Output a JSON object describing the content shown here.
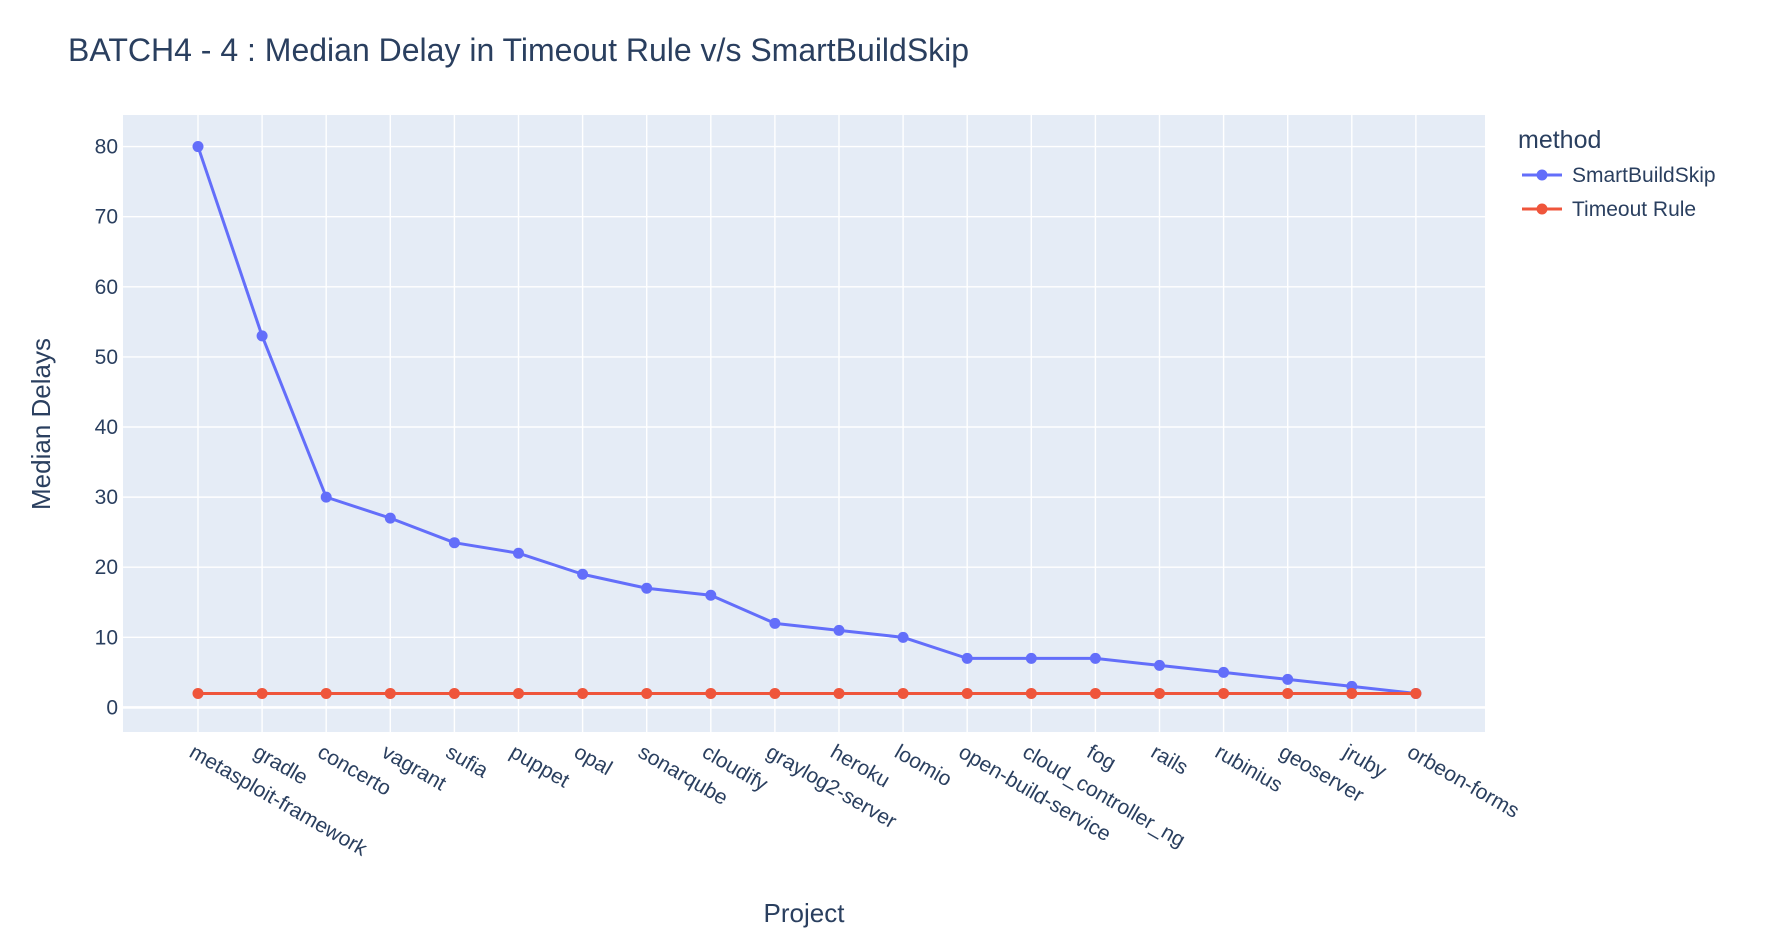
{
  "chart_data": {
    "type": "line",
    "title": "BATCH4 - 4 : Median Delay in Timeout Rule v/s SmartBuildSkip",
    "xlabel": "Project",
    "ylabel": "Median Delays",
    "ylim": [
      -3.5,
      84.5
    ],
    "yticks": [
      0,
      10,
      20,
      30,
      40,
      50,
      60,
      70,
      80
    ],
    "grid": true,
    "legend_title": "method",
    "legend_position": "top-right",
    "categories": [
      "metasploit-framework",
      "gradle",
      "concerto",
      "vagrant",
      "sufia",
      "puppet",
      "opal",
      "sonarqube",
      "cloudify",
      "graylog2-server",
      "heroku",
      "loomio",
      "open-build-service",
      "cloud_controller_ng",
      "fog",
      "rails",
      "rubinius",
      "geoserver",
      "jruby",
      "orbeon-forms"
    ],
    "series": [
      {
        "name": "SmartBuildSkip",
        "color": "#636efa",
        "values": [
          80,
          53,
          30,
          27,
          23.5,
          22,
          19,
          17,
          16,
          12,
          11,
          10,
          7,
          7,
          7,
          6,
          5,
          4,
          3,
          2
        ]
      },
      {
        "name": "Timeout Rule",
        "color": "#ef553b",
        "values": [
          2,
          2,
          2,
          2,
          2,
          2,
          2,
          2,
          2,
          2,
          2,
          2,
          2,
          2,
          2,
          2,
          2,
          2,
          2,
          2
        ]
      }
    ],
    "colors": {
      "plot_background": "#e5ecf6",
      "grid": "#ffffff",
      "text": "#2a3f5f"
    }
  }
}
